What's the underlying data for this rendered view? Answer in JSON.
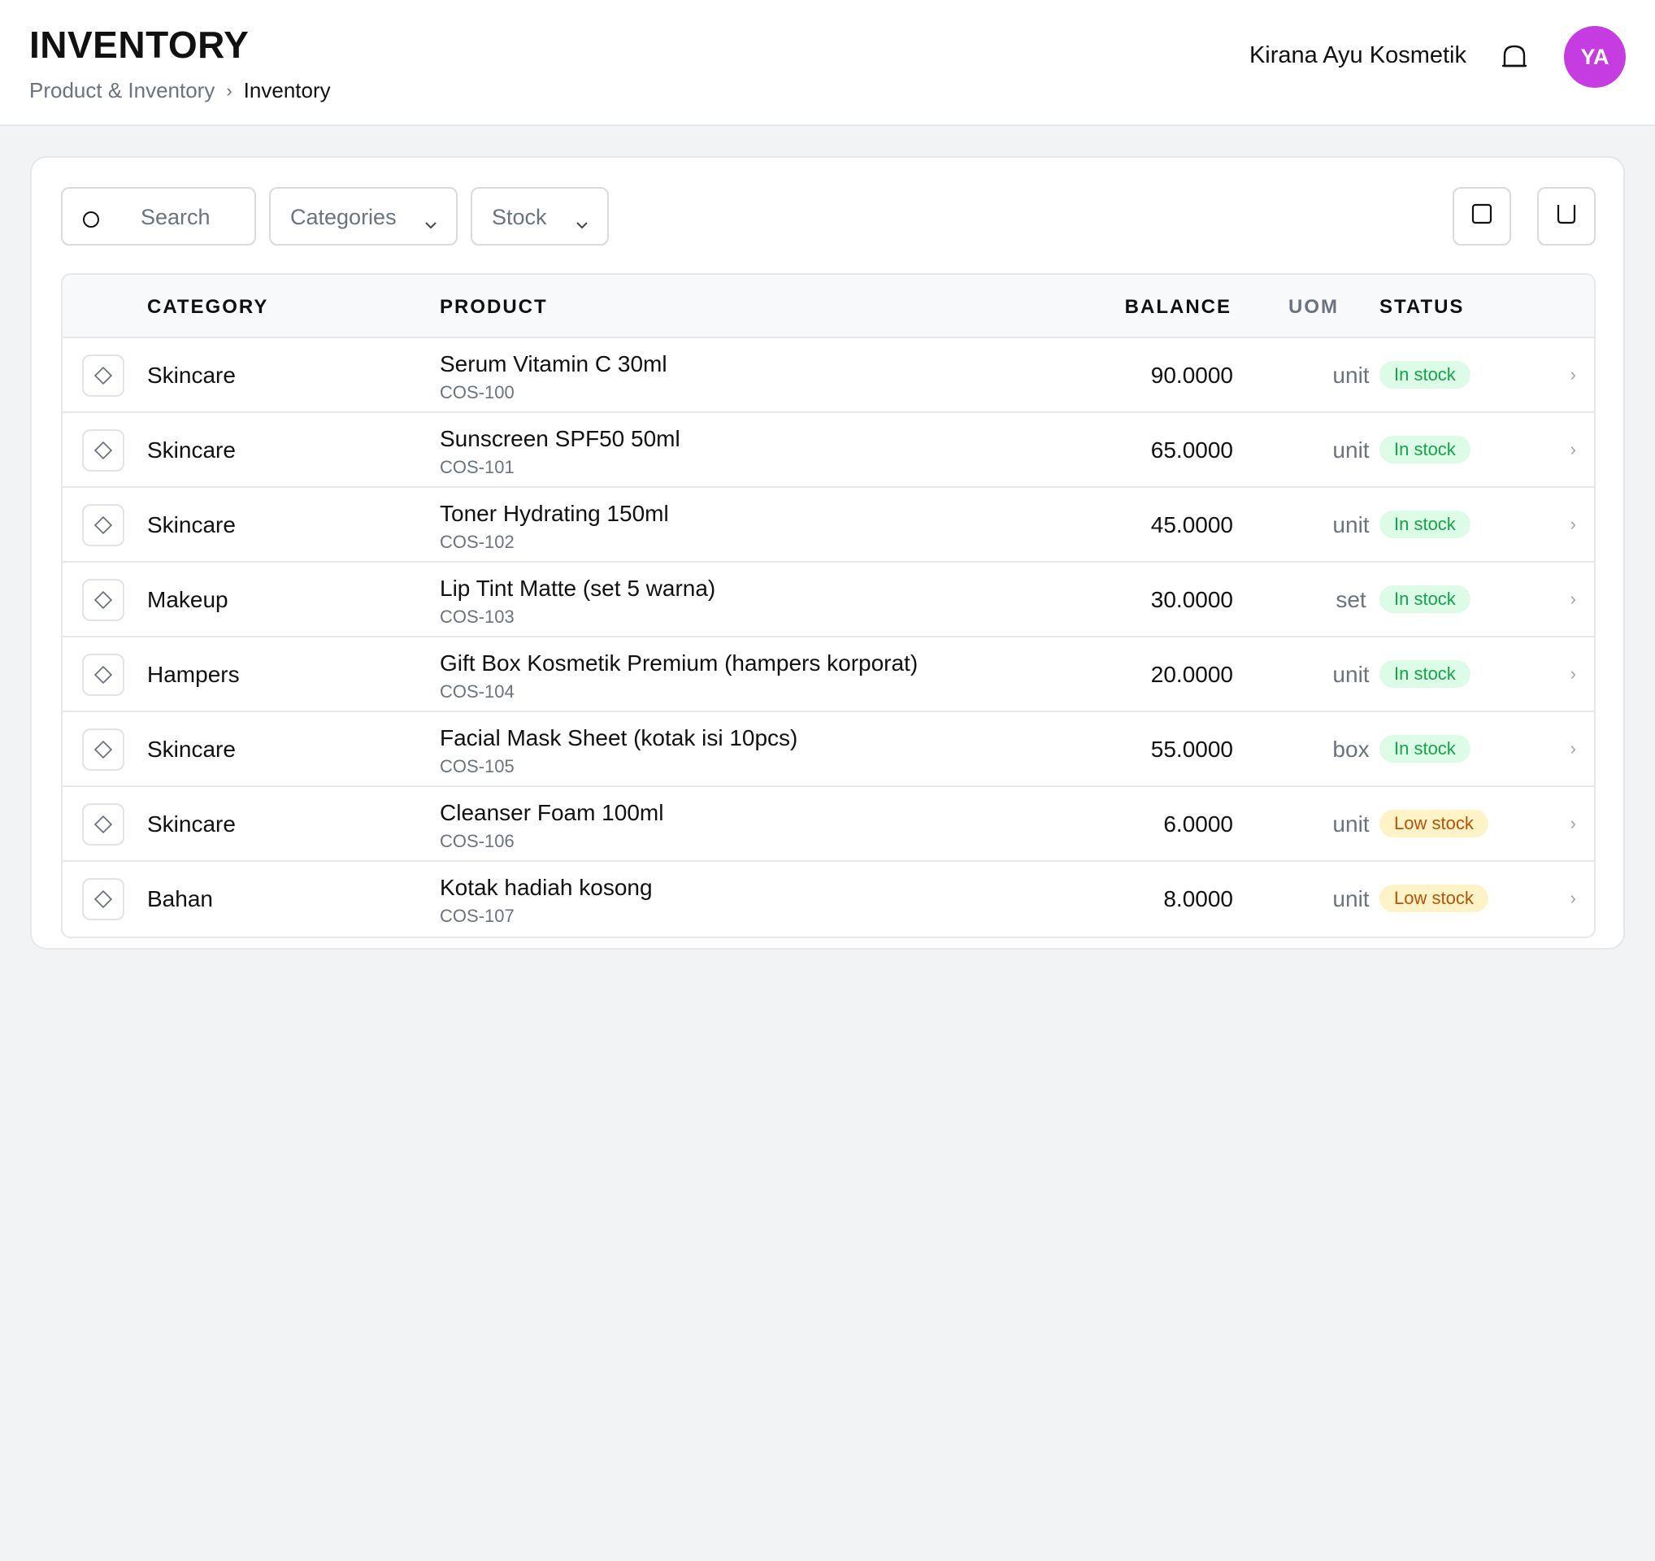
{
  "header": {
    "title": "INVENTORY",
    "breadcrumb": {
      "parent": "Product & Inventory",
      "separator": "›",
      "current": "Inventory"
    },
    "org_name": "Kirana Ayu Kosmetik",
    "notification_icon": "bell-icon",
    "avatar_initials": "YA",
    "avatar_color": "#c53de0"
  },
  "toolbar": {
    "search_placeholder": "Search",
    "categories_label": "Categories",
    "stock_label": "Stock",
    "action_icons": [
      "square-icon",
      "cup-icon"
    ]
  },
  "table": {
    "columns": {
      "category": "CATEGORY",
      "product": "PRODUCT",
      "balance": "BALANCE",
      "uom": "UOM",
      "status": "STATUS"
    },
    "rows": [
      {
        "category": "Skincare",
        "name": "Serum Vitamin C 30ml",
        "code": "COS-100",
        "balance": "90.0000",
        "uom": "unit",
        "status": "In stock",
        "status_type": "in"
      },
      {
        "category": "Skincare",
        "name": "Sunscreen SPF50 50ml",
        "code": "COS-101",
        "balance": "65.0000",
        "uom": "unit",
        "status": "In stock",
        "status_type": "in"
      },
      {
        "category": "Skincare",
        "name": "Toner Hydrating 150ml",
        "code": "COS-102",
        "balance": "45.0000",
        "uom": "unit",
        "status": "In stock",
        "status_type": "in"
      },
      {
        "category": "Makeup",
        "name": "Lip Tint Matte (set 5 warna)",
        "code": "COS-103",
        "balance": "30.0000",
        "uom": "set",
        "status": "In stock",
        "status_type": "in"
      },
      {
        "category": "Hampers",
        "name": "Gift Box Kosmetik Premium (hampers korporat)",
        "code": "COS-104",
        "balance": "20.0000",
        "uom": "unit",
        "status": "In stock",
        "status_type": "in"
      },
      {
        "category": "Skincare",
        "name": "Facial Mask Sheet (kotak isi 10pcs)",
        "code": "COS-105",
        "balance": "55.0000",
        "uom": "box",
        "status": "In stock",
        "status_type": "in"
      },
      {
        "category": "Skincare",
        "name": "Cleanser Foam 100ml",
        "code": "COS-106",
        "balance": "6.0000",
        "uom": "unit",
        "status": "Low stock",
        "status_type": "low"
      },
      {
        "category": "Bahan",
        "name": "Kotak hadiah kosong",
        "code": "COS-107",
        "balance": "8.0000",
        "uom": "unit",
        "status": "Low stock",
        "status_type": "low"
      }
    ],
    "row_icon": "tag-icon",
    "row_chevron": "›"
  },
  "colors": {
    "in_stock_bg": "#dcfce7",
    "in_stock_text": "#16a34a",
    "low_stock_bg": "#fef3c7",
    "low_stock_text": "#b45309"
  }
}
